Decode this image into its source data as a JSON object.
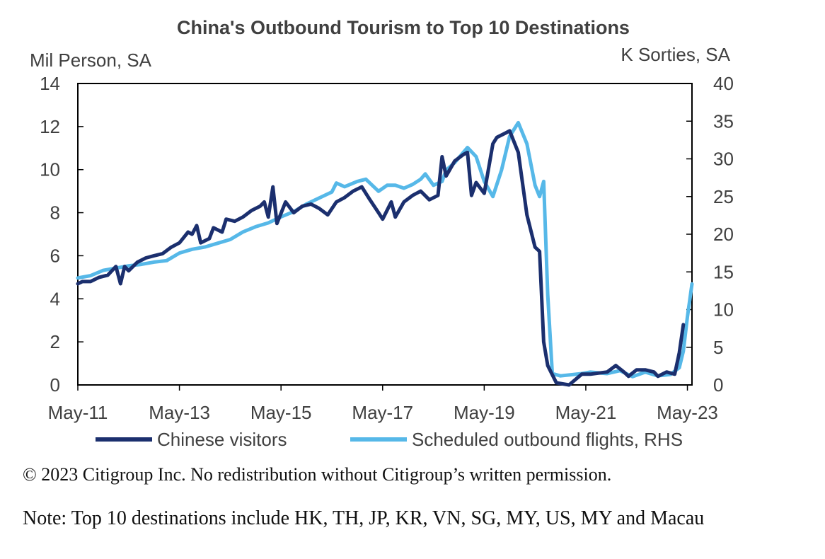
{
  "chart_data": {
    "type": "line",
    "title": "China's Outbound Tourism to Top 10 Destinations",
    "left_axis_label": "Mil Person, SA",
    "right_axis_label": "K Sorties, SA",
    "ylim_left": [
      0,
      14
    ],
    "ylim_right": [
      0,
      40
    ],
    "yticks_left": [
      "0",
      "2",
      "4",
      "6",
      "8",
      "10",
      "12",
      "14"
    ],
    "yticks_right": [
      "0",
      "5",
      "10",
      "15",
      "20",
      "25",
      "30",
      "35",
      "40"
    ],
    "xticks": [
      "May-11",
      "May-13",
      "May-15",
      "May-17",
      "May-19",
      "May-21",
      "May-23"
    ],
    "x_range": [
      2011.33,
      2023.42
    ],
    "colors": {
      "chinese_visitors": "#1b2f6e",
      "scheduled_flights": "#56b8e8",
      "axis": "#000000",
      "text": "#404040"
    },
    "series": [
      {
        "name": "Chinese visitors",
        "axis": "left",
        "points": [
          [
            2011.33,
            4.7
          ],
          [
            2011.42,
            4.8
          ],
          [
            2011.58,
            4.8
          ],
          [
            2011.75,
            5.0
          ],
          [
            2011.92,
            5.1
          ],
          [
            2012.0,
            5.3
          ],
          [
            2012.08,
            5.5
          ],
          [
            2012.17,
            4.7
          ],
          [
            2012.25,
            5.5
          ],
          [
            2012.33,
            5.3
          ],
          [
            2012.5,
            5.7
          ],
          [
            2012.67,
            5.9
          ],
          [
            2012.83,
            6.0
          ],
          [
            2013.0,
            6.1
          ],
          [
            2013.17,
            6.4
          ],
          [
            2013.33,
            6.6
          ],
          [
            2013.5,
            7.1
          ],
          [
            2013.58,
            7.0
          ],
          [
            2013.67,
            7.4
          ],
          [
            2013.75,
            6.6
          ],
          [
            2013.92,
            6.8
          ],
          [
            2014.0,
            7.3
          ],
          [
            2014.17,
            7.1
          ],
          [
            2014.25,
            7.7
          ],
          [
            2014.42,
            7.6
          ],
          [
            2014.58,
            7.8
          ],
          [
            2014.75,
            8.1
          ],
          [
            2014.92,
            8.3
          ],
          [
            2015.0,
            8.5
          ],
          [
            2015.08,
            7.8
          ],
          [
            2015.17,
            9.2
          ],
          [
            2015.25,
            7.5
          ],
          [
            2015.42,
            8.5
          ],
          [
            2015.58,
            8.0
          ],
          [
            2015.75,
            8.3
          ],
          [
            2015.92,
            8.4
          ],
          [
            2016.08,
            8.2
          ],
          [
            2016.25,
            7.9
          ],
          [
            2016.42,
            8.5
          ],
          [
            2016.58,
            8.7
          ],
          [
            2016.75,
            9.0
          ],
          [
            2016.92,
            9.2
          ],
          [
            2017.08,
            8.6
          ],
          [
            2017.25,
            8.0
          ],
          [
            2017.33,
            7.7
          ],
          [
            2017.5,
            8.5
          ],
          [
            2017.58,
            7.8
          ],
          [
            2017.75,
            8.5
          ],
          [
            2017.92,
            8.8
          ],
          [
            2018.08,
            9.0
          ],
          [
            2018.25,
            8.6
          ],
          [
            2018.42,
            8.8
          ],
          [
            2018.5,
            10.6
          ],
          [
            2018.58,
            9.7
          ],
          [
            2018.75,
            10.4
          ],
          [
            2018.92,
            10.7
          ],
          [
            2019.0,
            10.8
          ],
          [
            2019.08,
            8.8
          ],
          [
            2019.17,
            9.4
          ],
          [
            2019.33,
            8.9
          ],
          [
            2019.5,
            11.2
          ],
          [
            2019.58,
            11.5
          ],
          [
            2019.75,
            11.7
          ],
          [
            2019.83,
            11.8
          ],
          [
            2020.0,
            10.8
          ],
          [
            2020.17,
            7.9
          ],
          [
            2020.33,
            6.4
          ],
          [
            2020.42,
            6.2
          ],
          [
            2020.5,
            2.0
          ],
          [
            2020.58,
            0.9
          ],
          [
            2020.75,
            0.1
          ],
          [
            2021.0,
            0.0
          ],
          [
            2021.25,
            0.5
          ],
          [
            2021.42,
            0.5
          ],
          [
            2021.75,
            0.6
          ],
          [
            2021.92,
            0.9
          ],
          [
            2022.08,
            0.6
          ],
          [
            2022.17,
            0.4
          ],
          [
            2022.33,
            0.7
          ],
          [
            2022.5,
            0.7
          ],
          [
            2022.67,
            0.6
          ],
          [
            2022.75,
            0.4
          ],
          [
            2022.92,
            0.6
          ],
          [
            2023.08,
            0.5
          ],
          [
            2023.17,
            1.5
          ],
          [
            2023.25,
            2.8
          ]
        ]
      },
      {
        "name": "Scheduled outbound flights, RHS",
        "axis": "right",
        "points": [
          [
            2011.33,
            14.2
          ],
          [
            2011.58,
            14.5
          ],
          [
            2011.83,
            15.2
          ],
          [
            2012.08,
            15.5
          ],
          [
            2012.33,
            15.8
          ],
          [
            2012.58,
            16.0
          ],
          [
            2012.83,
            16.3
          ],
          [
            2013.08,
            16.5
          ],
          [
            2013.33,
            17.5
          ],
          [
            2013.58,
            18.0
          ],
          [
            2013.83,
            18.3
          ],
          [
            2014.08,
            18.8
          ],
          [
            2014.33,
            19.3
          ],
          [
            2014.58,
            20.3
          ],
          [
            2014.83,
            21.0
          ],
          [
            2015.08,
            21.5
          ],
          [
            2015.33,
            22.3
          ],
          [
            2015.58,
            23.0
          ],
          [
            2015.83,
            24.0
          ],
          [
            2016.08,
            24.8
          ],
          [
            2016.33,
            25.6
          ],
          [
            2016.42,
            26.8
          ],
          [
            2016.58,
            26.3
          ],
          [
            2016.83,
            27.0
          ],
          [
            2017.0,
            27.3
          ],
          [
            2017.25,
            25.7
          ],
          [
            2017.42,
            26.5
          ],
          [
            2017.58,
            26.5
          ],
          [
            2017.75,
            26.1
          ],
          [
            2017.92,
            26.6
          ],
          [
            2018.08,
            27.3
          ],
          [
            2018.17,
            28.0
          ],
          [
            2018.33,
            26.5
          ],
          [
            2018.5,
            27.0
          ],
          [
            2018.58,
            28.5
          ],
          [
            2018.75,
            29.5
          ],
          [
            2019.0,
            31.5
          ],
          [
            2019.17,
            30.3
          ],
          [
            2019.33,
            27.0
          ],
          [
            2019.5,
            25.0
          ],
          [
            2019.67,
            28.5
          ],
          [
            2019.83,
            33.0
          ],
          [
            2020.0,
            34.8
          ],
          [
            2020.17,
            32.0
          ],
          [
            2020.33,
            26.5
          ],
          [
            2020.42,
            25.0
          ],
          [
            2020.5,
            27.0
          ],
          [
            2020.58,
            12.0
          ],
          [
            2020.67,
            1.5
          ],
          [
            2020.83,
            1.2
          ],
          [
            2021.25,
            1.5
          ],
          [
            2021.42,
            1.7
          ],
          [
            2021.75,
            1.5
          ],
          [
            2022.0,
            1.9
          ],
          [
            2022.25,
            1.1
          ],
          [
            2022.5,
            1.7
          ],
          [
            2022.75,
            1.2
          ],
          [
            2023.0,
            1.4
          ],
          [
            2023.17,
            2.3
          ],
          [
            2023.25,
            4.5
          ],
          [
            2023.33,
            9.0
          ],
          [
            2023.42,
            13.4
          ]
        ]
      }
    ]
  },
  "footer": {
    "copyright": "© 2023 Citigroup Inc. No redistribution without Citigroup’s written permission.",
    "note": "Note: Top 10 destinations include HK, TH, JP, KR, VN, SG, MY, US, MY and Macau"
  }
}
